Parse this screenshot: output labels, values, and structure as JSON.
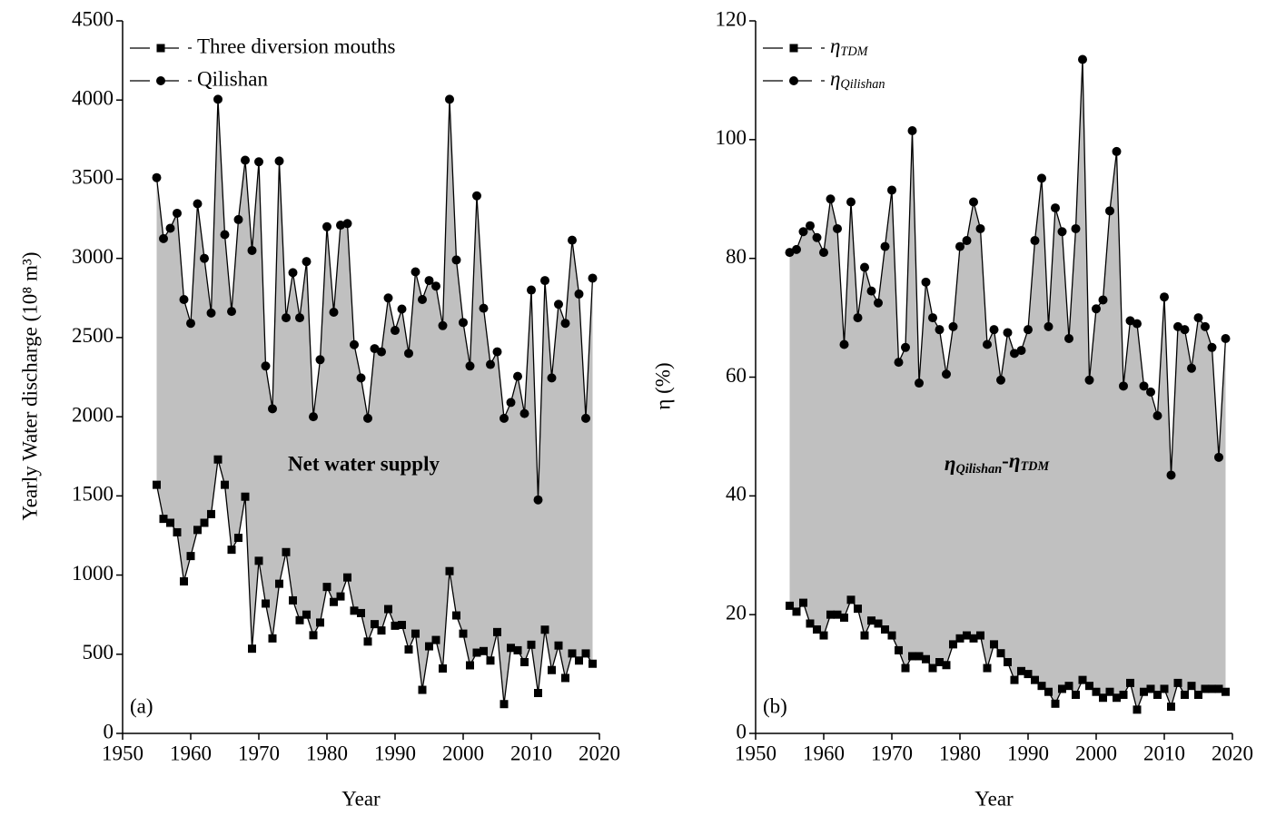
{
  "chart_data": [
    {
      "type": "line",
      "xlabel": "Year",
      "ylabel": "Yearly Water discharge (10⁸ m³)",
      "x": [
        1955,
        1956,
        1957,
        1958,
        1959,
        1960,
        1961,
        1962,
        1963,
        1964,
        1965,
        1966,
        1967,
        1968,
        1969,
        1970,
        1971,
        1972,
        1973,
        1974,
        1975,
        1976,
        1977,
        1978,
        1979,
        1980,
        1981,
        1982,
        1983,
        1984,
        1985,
        1986,
        1987,
        1988,
        1989,
        1990,
        1991,
        1992,
        1993,
        1994,
        1995,
        1996,
        1997,
        1998,
        1999,
        2000,
        2001,
        2002,
        2003,
        2004,
        2005,
        2006,
        2007,
        2008,
        2009,
        2010,
        2011,
        2012,
        2013,
        2014,
        2015,
        2016,
        2017,
        2018,
        2019
      ],
      "series": [
        {
          "name": "Three diversion mouths",
          "color": "#000000",
          "marker": "square",
          "values": [
            1570,
            1355,
            1330,
            1270,
            960,
            1120,
            1285,
            1330,
            1385,
            1730,
            1570,
            1160,
            1235,
            1495,
            535,
            1090,
            820,
            600,
            945,
            1145,
            840,
            715,
            750,
            620,
            700,
            925,
            830,
            865,
            985,
            775,
            760,
            580,
            690,
            650,
            785,
            680,
            685,
            530,
            630,
            275,
            550,
            590,
            410,
            1025,
            745,
            630,
            430,
            510,
            520,
            460,
            640,
            185,
            540,
            525,
            450,
            560,
            255,
            655,
            400,
            555,
            350,
            505,
            460,
            505,
            440
          ]
        },
        {
          "name": "Qilishan",
          "color": "#000000",
          "marker": "circle",
          "values": [
            3510,
            3125,
            3190,
            3285,
            2740,
            2590,
            3345,
            3000,
            2655,
            4005,
            3150,
            2665,
            3245,
            3620,
            3050,
            3610,
            2320,
            2050,
            3615,
            2625,
            2910,
            2625,
            2980,
            2000,
            2360,
            3200,
            2660,
            3210,
            3220,
            2455,
            2245,
            1990,
            2430,
            2410,
            2750,
            2545,
            2680,
            2400,
            2915,
            2740,
            2860,
            2825,
            2575,
            4005,
            2990,
            2595,
            2320,
            3395,
            2685,
            2330,
            2410,
            1990,
            2090,
            2255,
            2020,
            2800,
            1475,
            2860,
            2245,
            2710,
            2590,
            3115,
            2775,
            1990,
            2875
          ]
        }
      ],
      "fill_between": true,
      "fill_color": "#c0c0c0",
      "xlim": [
        1950,
        2020
      ],
      "xticks": [
        1950,
        1960,
        1970,
        1980,
        1990,
        2000,
        2010,
        2020
      ],
      "ylim": [
        0,
        4500
      ],
      "yticks": [
        0,
        500,
        1000,
        1500,
        2000,
        2500,
        3000,
        3500,
        4000,
        4500
      ],
      "annotations": [
        {
          "text": "(a)"
        },
        {
          "text": "Net water supply"
        }
      ]
    },
    {
      "type": "line",
      "xlabel": "Year",
      "ylabel": "η (%)",
      "x": [
        1955,
        1956,
        1957,
        1958,
        1959,
        1960,
        1961,
        1962,
        1963,
        1964,
        1965,
        1966,
        1967,
        1968,
        1969,
        1970,
        1971,
        1972,
        1973,
        1974,
        1975,
        1976,
        1977,
        1978,
        1979,
        1980,
        1981,
        1982,
        1983,
        1984,
        1985,
        1986,
        1987,
        1988,
        1989,
        1990,
        1991,
        1992,
        1993,
        1994,
        1995,
        1996,
        1997,
        1998,
        1999,
        2000,
        2001,
        2002,
        2003,
        2004,
        2005,
        2006,
        2007,
        2008,
        2009,
        2010,
        2011,
        2012,
        2013,
        2014,
        2015,
        2016,
        2017,
        2018,
        2019
      ],
      "series": [
        {
          "name": "ηTDM",
          "color": "#000000",
          "marker": "square",
          "values": [
            21.5,
            20.5,
            22,
            18.5,
            17.5,
            16.5,
            20,
            20,
            19.5,
            22.5,
            21,
            16.5,
            19,
            18.5,
            17.5,
            16.5,
            14,
            11,
            13,
            13,
            12.5,
            11,
            12,
            11.5,
            15,
            16,
            16.5,
            16,
            16.5,
            11,
            15,
            13.5,
            12,
            9,
            10.5,
            10,
            9,
            8,
            7,
            5,
            7.5,
            8,
            6.5,
            9,
            8,
            7,
            6,
            7,
            6,
            6.5,
            8.5,
            4,
            7,
            7.5,
            6.5,
            7.5,
            4.5,
            8.5,
            6.5,
            8,
            6.5,
            7.5,
            7.5,
            7.5,
            7
          ]
        },
        {
          "name": "ηQilishan",
          "color": "#000000",
          "marker": "circle",
          "values": [
            81,
            81.5,
            84.5,
            85.5,
            83.5,
            81,
            90,
            85,
            65.5,
            89.5,
            70,
            78.5,
            74.5,
            72.5,
            82,
            91.5,
            62.5,
            65,
            101.5,
            59,
            76,
            70,
            68,
            60.5,
            68.5,
            82,
            83,
            89.5,
            85,
            65.5,
            68,
            59.5,
            67.5,
            64,
            64.5,
            68,
            83,
            93.5,
            68.5,
            88.5,
            84.5,
            66.5,
            85,
            113.5,
            59.5,
            71.5,
            73,
            88,
            98,
            58.5,
            69.5,
            69,
            58.5,
            57.5,
            53.5,
            73.5,
            43.5,
            68.5,
            68,
            61.5,
            70,
            68.5,
            65,
            46.5,
            66.5
          ]
        }
      ],
      "fill_between": true,
      "fill_color": "#c0c0c0",
      "xlim": [
        1950,
        2020
      ],
      "xticks": [
        1950,
        1960,
        1970,
        1980,
        1990,
        2000,
        2010,
        2020
      ],
      "ylim": [
        0,
        120
      ],
      "yticks": [
        0,
        20,
        40,
        60,
        80,
        100,
        120
      ],
      "annotations": [
        {
          "text": "(b)"
        },
        {
          "text": "ηQilishan-ηTDM"
        }
      ]
    }
  ]
}
